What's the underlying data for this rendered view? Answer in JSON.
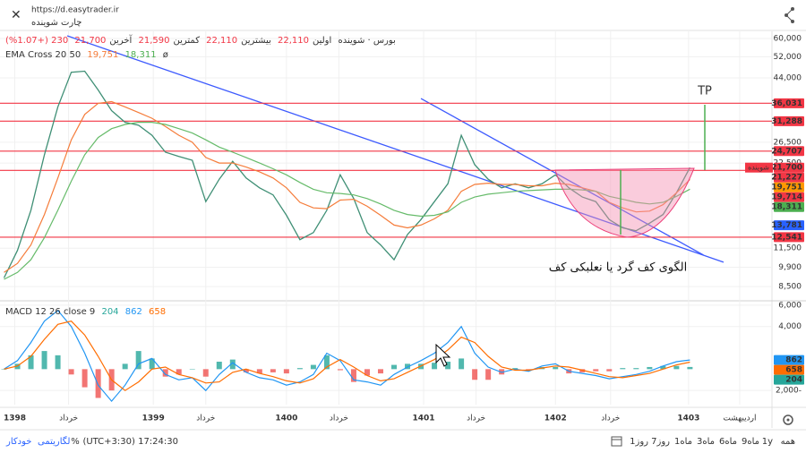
{
  "topbar": {
    "url": "https://d.easytrader.ir",
    "title": "چارت شوینده"
  },
  "symbol": {
    "name": "بورس · شوینده",
    "ohlc": [
      {
        "label": "اولین",
        "value": "22,110"
      },
      {
        "label": "بیشترین",
        "value": "22,110"
      },
      {
        "label": "کمترین",
        "value": "21,590"
      },
      {
        "label": "آخرین",
        "value": "21,700"
      }
    ],
    "change": "230 (+1.07%)"
  },
  "indicators": {
    "ema": {
      "title": "EMA Cross 20 50",
      "values": [
        "19,751",
        "18,311"
      ],
      "extra": "ø"
    },
    "macd": {
      "title": "MACD 12 26 close 9",
      "values": [
        "204",
        "862",
        "658"
      ]
    }
  },
  "annotations": {
    "tp": "TP",
    "pattern": "الگوی کف گرد یا نعلبکی کف"
  },
  "bottombar": {
    "ranges": [
      "همه",
      "1y",
      "9ماه",
      "6ماه",
      "3ماه",
      "1ماه",
      "7روز",
      "1روز"
    ],
    "clock": "(UTC+3:30) 17:24:30",
    "percent": "%",
    "log": "لگاریتمی",
    "auto": "خودکار"
  },
  "chart_data": [
    {
      "type": "line",
      "log_scale": true,
      "grid": true,
      "xlim": [
        -0.3,
        57.1
      ],
      "ylim": [
        7650,
        63500
      ],
      "xticks": [
        {
          "value": 0.8,
          "label": "1398"
        },
        {
          "value": 4.8,
          "label": "خرداد"
        },
        {
          "value": 11.1,
          "label": "1399"
        },
        {
          "value": 15,
          "label": "خرداد"
        },
        {
          "value": 21,
          "label": "1400"
        },
        {
          "value": 24.9,
          "label": "خرداد"
        },
        {
          "value": 31.2,
          "label": "1401"
        },
        {
          "value": 35.1,
          "label": "خرداد"
        },
        {
          "value": 41,
          "label": "1402"
        },
        {
          "value": 45.1,
          "label": "خرداد"
        },
        {
          "value": 50.9,
          "label": "1403"
        },
        {
          "value": 54.7,
          "label": "اردیبهشت"
        }
      ],
      "yticks": [
        {
          "value": 60000,
          "label": "60,000"
        },
        {
          "value": 52000,
          "label": "52,000"
        },
        {
          "value": 44000,
          "label": "44,000"
        },
        {
          "value": 26500,
          "label": "26,500"
        },
        {
          "value": 22500,
          "label": "22,500"
        },
        {
          "value": 11500,
          "label": "11,500"
        },
        {
          "value": 9900,
          "label": "9,900"
        },
        {
          "value": 8500,
          "label": "8,500"
        }
      ],
      "x": [
        0,
        1,
        2,
        3,
        4,
        5,
        6,
        7,
        8,
        9,
        10,
        11,
        12,
        13,
        14,
        15,
        16,
        17,
        18,
        19,
        20,
        21,
        22,
        23,
        24,
        25,
        26,
        27,
        28,
        29,
        30,
        31,
        32,
        33,
        34,
        35,
        36,
        37,
        38,
        39,
        40,
        41,
        42,
        43,
        44,
        45,
        46,
        47,
        48,
        49,
        50,
        51
      ],
      "series": [
        {
          "color": "#3f8f75",
          "width": 1.3,
          "values": [
            9100,
            11300,
            15500,
            24000,
            35000,
            46000,
            46400,
            40000,
            34000,
            31000,
            30300,
            28000,
            24500,
            23700,
            23000,
            16600,
            19800,
            22800,
            20000,
            18500,
            17500,
            14900,
            12300,
            13000,
            15500,
            20500,
            17000,
            13000,
            11800,
            10500,
            12800,
            14400,
            16600,
            19100,
            28000,
            22200,
            19800,
            18500,
            19100,
            18500,
            19100,
            20500,
            18500,
            17200,
            16600,
            14400,
            13500,
            13200,
            14000,
            15000,
            17800,
            21700
          ]
        },
        {
          "color": "#f57c3a",
          "width": 1.2,
          "values": [
            9500,
            10200,
            11800,
            15000,
            20000,
            27000,
            33000,
            36000,
            36500,
            35000,
            33500,
            32000,
            30000,
            28000,
            26500,
            23500,
            22500,
            22500,
            21800,
            21000,
            20000,
            18500,
            16500,
            15800,
            15700,
            16800,
            16900,
            16000,
            14900,
            13800,
            13500,
            13800,
            14500,
            15500,
            18000,
            19000,
            19200,
            19000,
            19000,
            18800,
            18800,
            19200,
            19000,
            18500,
            18000,
            16500,
            15800,
            15300,
            15400,
            16200,
            17800,
            19751
          ]
        },
        {
          "color": "#66bb6a",
          "width": 1.2,
          "values": [
            9000,
            9500,
            10500,
            12500,
            15500,
            19500,
            24000,
            27500,
            29500,
            30500,
            31000,
            31000,
            30500,
            29500,
            28500,
            27000,
            25500,
            24500,
            23500,
            22500,
            21500,
            20500,
            19300,
            18300,
            17800,
            17700,
            17500,
            17000,
            16300,
            15500,
            15000,
            14800,
            14900,
            15300,
            16500,
            17200,
            17600,
            17800,
            18000,
            18100,
            18200,
            18300,
            18300,
            18200,
            18000,
            17300,
            16900,
            16500,
            16300,
            16500,
            17300,
            18311
          ]
        }
      ],
      "trend_lines": [
        {
          "color": "#3d5afe",
          "x": [
            4.7,
            53.5
          ],
          "y": [
            61300,
            10300
          ]
        },
        {
          "color": "#3d5afe",
          "x": [
            31,
            52
          ],
          "y": [
            37400,
            10900
          ]
        }
      ],
      "price_labels": [
        {
          "value": 36031,
          "label": "36,031",
          "color": "#f23645",
          "line": true
        },
        {
          "value": 31288,
          "label": "31,288",
          "color": "#f23645",
          "line": true
        },
        {
          "value": 24707,
          "label": "24,707",
          "color": "#f23645",
          "line": true
        },
        {
          "value": 21700,
          "label": "21,700",
          "color": "#f23645",
          "line": false,
          "tag": "شوینده"
        },
        {
          "value": 21227,
          "label": "21,227",
          "color": "#f23645",
          "line": true
        },
        {
          "value": 19751,
          "label": "19,751",
          "color": "#ff9800",
          "line": false
        },
        {
          "value": 19714,
          "label": "19,714",
          "color": "#f23645",
          "line": false
        },
        {
          "value": 18311,
          "label": "18,311",
          "color": "#4caf50",
          "line": false
        },
        {
          "value": 13781,
          "label": "13,781",
          "color": "#2962ff",
          "line": false
        },
        {
          "value": 12541,
          "label": "12,541",
          "color": "#f23645",
          "line": true
        }
      ]
    },
    {
      "type": "macd",
      "grid": true,
      "xlim": [
        -0.3,
        57.1
      ],
      "ylim": [
        -3330,
        6410
      ],
      "yticks": [
        {
          "value": 6000,
          "label": "6,000"
        },
        {
          "value": 4000,
          "label": "4,000"
        },
        {
          "value": -2000,
          "label": "2,000-"
        }
      ],
      "x": [
        0,
        1,
        2,
        3,
        4,
        5,
        6,
        7,
        8,
        9,
        10,
        11,
        12,
        13,
        14,
        15,
        16,
        17,
        18,
        19,
        20,
        21,
        22,
        23,
        24,
        25,
        26,
        27,
        28,
        29,
        30,
        31,
        32,
        33,
        34,
        35,
        36,
        37,
        38,
        39,
        40,
        41,
        42,
        43,
        44,
        45,
        46,
        47,
        48,
        49,
        50,
        51
      ],
      "histogram": {
        "color_up": "#26a69a",
        "color_down": "#ef5350",
        "values": [
          0,
          500,
          1300,
          1700,
          1300,
          -500,
          -1700,
          -2700,
          -2000,
          500,
          1700,
          1000,
          -700,
          -500,
          0,
          -700,
          700,
          900,
          -300,
          -400,
          -300,
          -400,
          100,
          400,
          1300,
          -100,
          -1200,
          -600,
          -400,
          400,
          500,
          500,
          600,
          700,
          1000,
          -1000,
          -1000,
          -500,
          100,
          -100,
          200,
          200,
          -400,
          -300,
          -200,
          -200,
          100,
          100,
          200,
          300,
          300,
          204
        ]
      },
      "series": [
        {
          "color": "#2196f3",
          "width": 1.2,
          "values": [
            0,
            800,
            2500,
            4500,
            5500,
            4000,
            1500,
            -1500,
            -3000,
            -1500,
            500,
            1000,
            -500,
            -1000,
            -800,
            -2000,
            -500,
            600,
            -300,
            -800,
            -1000,
            -1500,
            -1200,
            -500,
            1500,
            800,
            -1000,
            -1200,
            -1500,
            -500,
            200,
            800,
            1500,
            2500,
            4000,
            1500,
            200,
            -300,
            0,
            -200,
            300,
            500,
            -200,
            -400,
            -600,
            -900,
            -700,
            -500,
            -200,
            300,
            700,
            862
          ]
        },
        {
          "color": "#ff6d00",
          "width": 1.2,
          "values": [
            0,
            300,
            1200,
            2800,
            4200,
            4500,
            3200,
            1200,
            -1000,
            -2000,
            -1200,
            0,
            200,
            -500,
            -800,
            -1300,
            -1200,
            -300,
            0,
            -400,
            -700,
            -1100,
            -1300,
            -900,
            200,
            900,
            200,
            -600,
            -1100,
            -900,
            -300,
            300,
            900,
            1800,
            3000,
            2500,
            1200,
            200,
            -100,
            -100,
            100,
            300,
            200,
            -100,
            -400,
            -700,
            -800,
            -600,
            -400,
            0,
            400,
            658
          ]
        }
      ],
      "price_labels": [
        {
          "value": 862,
          "label": "862",
          "color": "#2196f3"
        },
        {
          "value": 658,
          "label": "658",
          "color": "#ff6d00"
        },
        {
          "value": 204,
          "label": "204",
          "color": "#26a69a"
        }
      ]
    }
  ]
}
